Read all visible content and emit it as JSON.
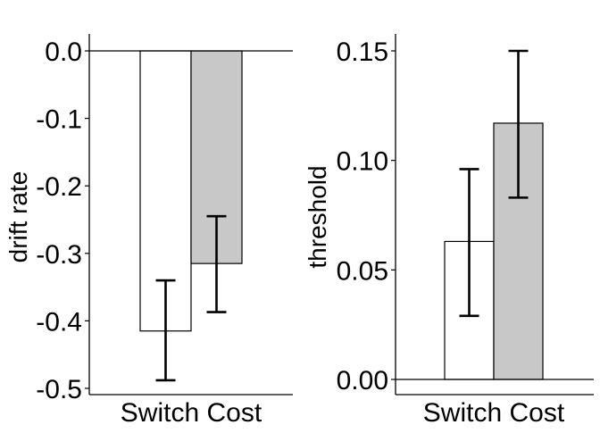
{
  "chart_data": [
    {
      "type": "bar",
      "categories": [
        "Switch Cost"
      ],
      "series": [
        {
          "values": [
            -0.415
          ],
          "error_low": [
            -0.488
          ],
          "error_high": [
            -0.34
          ],
          "color": "#ffffff"
        },
        {
          "values": [
            -0.315
          ],
          "error_low": [
            -0.387
          ],
          "error_high": [
            -0.245
          ],
          "color": "#c8c8c8"
        }
      ],
      "ylabel": "drift rate",
      "ylim": [
        -0.5,
        0.0
      ],
      "yticks": [
        0.0,
        -0.1,
        -0.2,
        -0.3,
        -0.4,
        -0.5
      ],
      "ytick_labels": [
        "0.0",
        "-0.1",
        "-0.2",
        "-0.3",
        "-0.4",
        "-0.5"
      ],
      "grid": false
    },
    {
      "type": "bar",
      "categories": [
        "Switch Cost"
      ],
      "series": [
        {
          "values": [
            0.063
          ],
          "error_low": [
            0.029
          ],
          "error_high": [
            0.096
          ],
          "color": "#ffffff"
        },
        {
          "values": [
            0.117
          ],
          "error_low": [
            0.083
          ],
          "error_high": [
            0.15
          ],
          "color": "#c8c8c8"
        }
      ],
      "ylabel": "threshold",
      "ylim": [
        0.0,
        0.15
      ],
      "yticks": [
        0.0,
        0.05,
        0.1,
        0.15
      ],
      "ytick_labels": [
        "0.00",
        "0.05",
        "0.10",
        "0.15"
      ],
      "grid": false
    }
  ]
}
